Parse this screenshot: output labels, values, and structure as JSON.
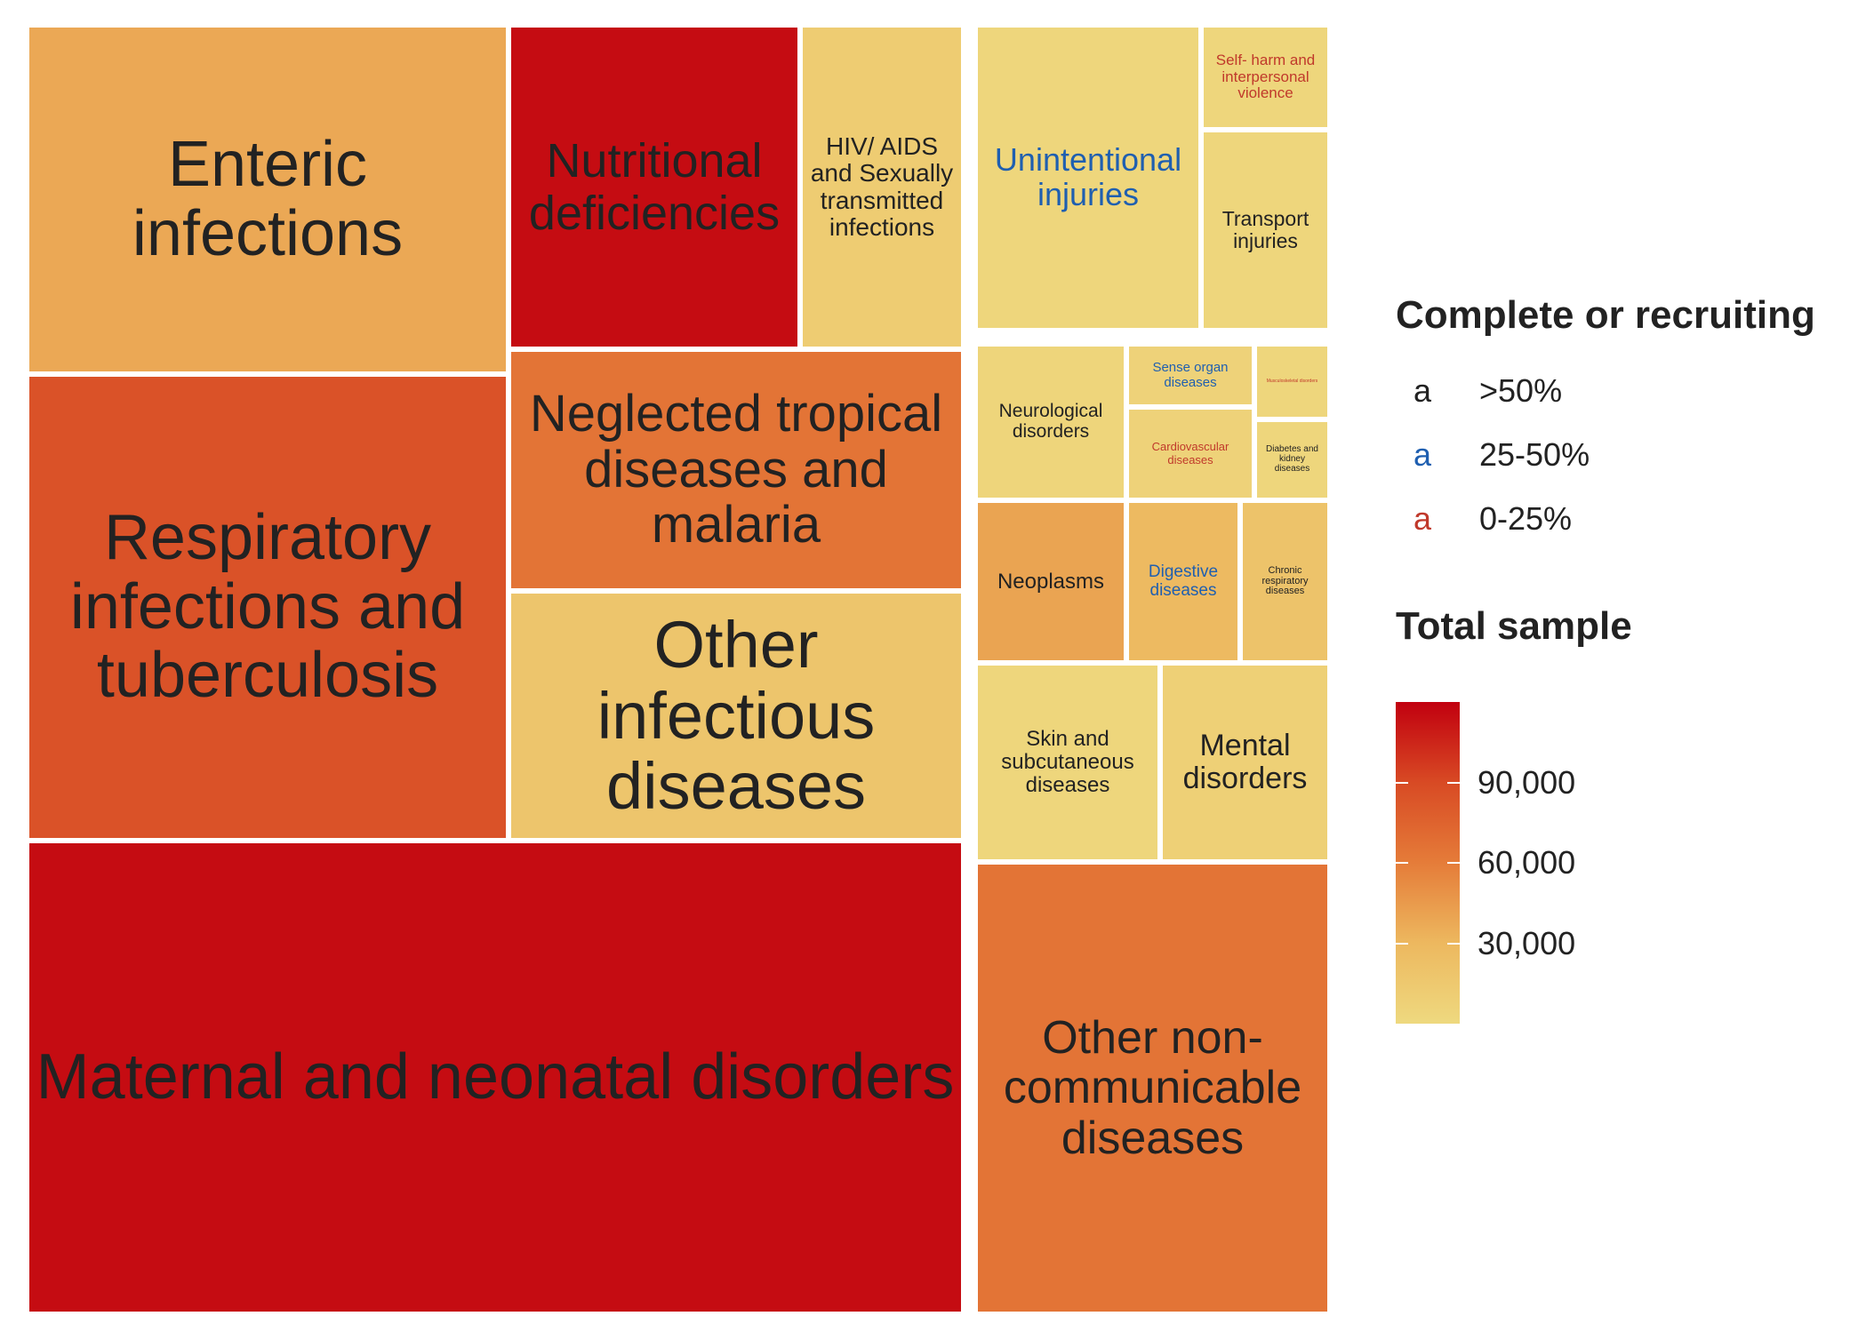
{
  "chart_data": {
    "type": "treemap",
    "tiles": [
      {
        "label": "Enteric infections",
        "group": "communicable",
        "total_sample": 38000,
        "recruiting_band": ">50%"
      },
      {
        "label": "Nutritional deficiencies",
        "group": "communicable",
        "total_sample": 115000,
        "recruiting_band": ">50%"
      },
      {
        "label": "HIV/ AIDS and Sexually transmitted infections",
        "group": "communicable",
        "total_sample": 12000,
        "recruiting_band": ">50%"
      },
      {
        "label": "Respiratory infections and tuberculosis",
        "group": "communicable",
        "total_sample": 85000,
        "recruiting_band": ">50%"
      },
      {
        "label": "Neglected tropical diseases and malaria",
        "group": "communicable",
        "total_sample": 65000,
        "recruiting_band": ">50%"
      },
      {
        "label": "Other infectious diseases",
        "group": "communicable",
        "total_sample": 18000,
        "recruiting_band": ">50%"
      },
      {
        "label": "Maternal and neonatal disorders",
        "group": "communicable",
        "total_sample": 115000,
        "recruiting_band": ">50%"
      },
      {
        "label": "Unintentional injuries",
        "group": "injuries",
        "total_sample": 3000,
        "recruiting_band": "25-50%"
      },
      {
        "label": "Self- harm and interpersonal violence",
        "group": "injuries",
        "total_sample": 3000,
        "recruiting_band": "0-25%"
      },
      {
        "label": "Transport injuries",
        "group": "injuries",
        "total_sample": 3000,
        "recruiting_band": ">50%"
      },
      {
        "label": "Neurological disorders",
        "group": "ncd",
        "total_sample": 4000,
        "recruiting_band": ">50%"
      },
      {
        "label": "Sense organ diseases",
        "group": "ncd",
        "total_sample": 6000,
        "recruiting_band": "25-50%"
      },
      {
        "label": "Musculoskeletal disorders",
        "group": "ncd",
        "total_sample": 3000,
        "recruiting_band": "0-25%"
      },
      {
        "label": "Cardiovascular diseases",
        "group": "ncd",
        "total_sample": 6000,
        "recruiting_band": "0-25%"
      },
      {
        "label": "Diabetes and kidney diseases",
        "group": "ncd",
        "total_sample": 3000,
        "recruiting_band": ">50%"
      },
      {
        "label": "Neoplasms",
        "group": "ncd",
        "total_sample": 40000,
        "recruiting_band": ">50%"
      },
      {
        "label": "Digestive diseases",
        "group": "ncd",
        "total_sample": 28000,
        "recruiting_band": "25-50%"
      },
      {
        "label": "Chronic respiratory diseases",
        "group": "ncd",
        "total_sample": 20000,
        "recruiting_band": ">50%"
      },
      {
        "label": "Skin and subcutaneous diseases",
        "group": "ncd",
        "total_sample": 3000,
        "recruiting_band": ">50%"
      },
      {
        "label": "Mental disorders",
        "group": "ncd",
        "total_sample": 8000,
        "recruiting_band": ">50%"
      },
      {
        "label": "Other non- communicable diseases",
        "group": "ncd",
        "total_sample": 65000,
        "recruiting_band": ">50%"
      }
    ],
    "legend_text": {
      "title": "Complete or recruiting",
      "key_glyph": "a",
      "items": [
        {
          "label": ">50%",
          "color": "#222222"
        },
        {
          "label": "25-50%",
          "color": "#1f5fb0"
        },
        {
          "label": "0-25%",
          "color": "#c0392b"
        }
      ]
    },
    "legend_fill": {
      "title": "Total sample",
      "ticks": [
        30000,
        60000,
        90000
      ],
      "tick_labels": [
        "30,000",
        "60,000",
        "90,000"
      ],
      "range": [
        0,
        120000
      ],
      "colors": [
        "#eed97f",
        "#edb85f",
        "#e57c39",
        "#d84a24",
        "#c1000f"
      ]
    }
  }
}
